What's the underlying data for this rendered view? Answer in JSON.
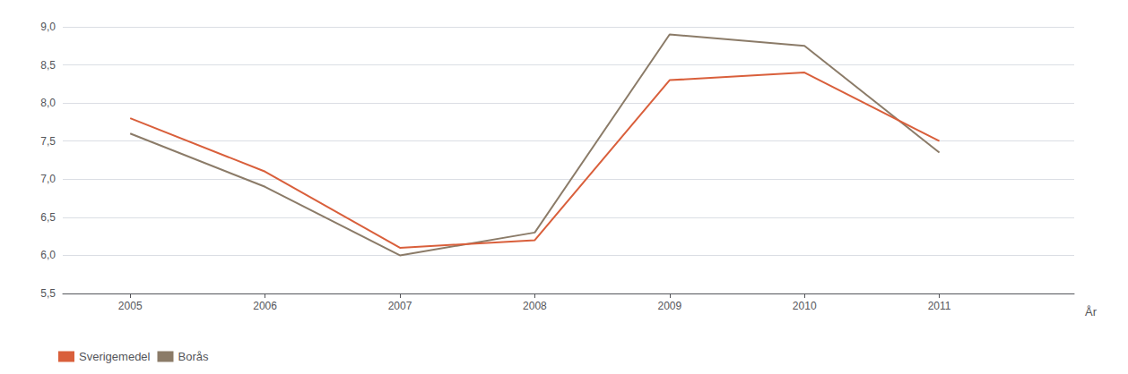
{
  "chart_data": {
    "type": "line",
    "xlabel": "År",
    "x": [
      2005,
      2006,
      2007,
      2008,
      2009,
      2010,
      2011
    ],
    "series": [
      {
        "name": "Sverigemedel",
        "color": "#d95f3b",
        "values": [
          7.8,
          7.1,
          6.1,
          6.2,
          8.3,
          8.4,
          7.5
        ]
      },
      {
        "name": "Borås",
        "color": "#8b7b68",
        "values": [
          7.6,
          6.9,
          6.0,
          6.3,
          8.9,
          8.75,
          7.35
        ]
      }
    ],
    "xlim": [
      2004.5,
      2012.0
    ],
    "xticks": [
      2005,
      2006,
      2007,
      2008,
      2009,
      2010,
      2011
    ],
    "ylim": [
      5.5,
      9.0
    ],
    "yticks": [
      {
        "value": 5.5,
        "label": "5,5"
      },
      {
        "value": 6.0,
        "label": "6,0"
      },
      {
        "value": 6.5,
        "label": "6,5"
      },
      {
        "value": 7.0,
        "label": "7,0"
      },
      {
        "value": 7.5,
        "label": "7,5"
      },
      {
        "value": 8.0,
        "label": "8,0"
      },
      {
        "value": 8.5,
        "label": "8,5"
      },
      {
        "value": 9.0,
        "label": "9,0"
      }
    ],
    "grid": true,
    "legend": "lower left"
  }
}
